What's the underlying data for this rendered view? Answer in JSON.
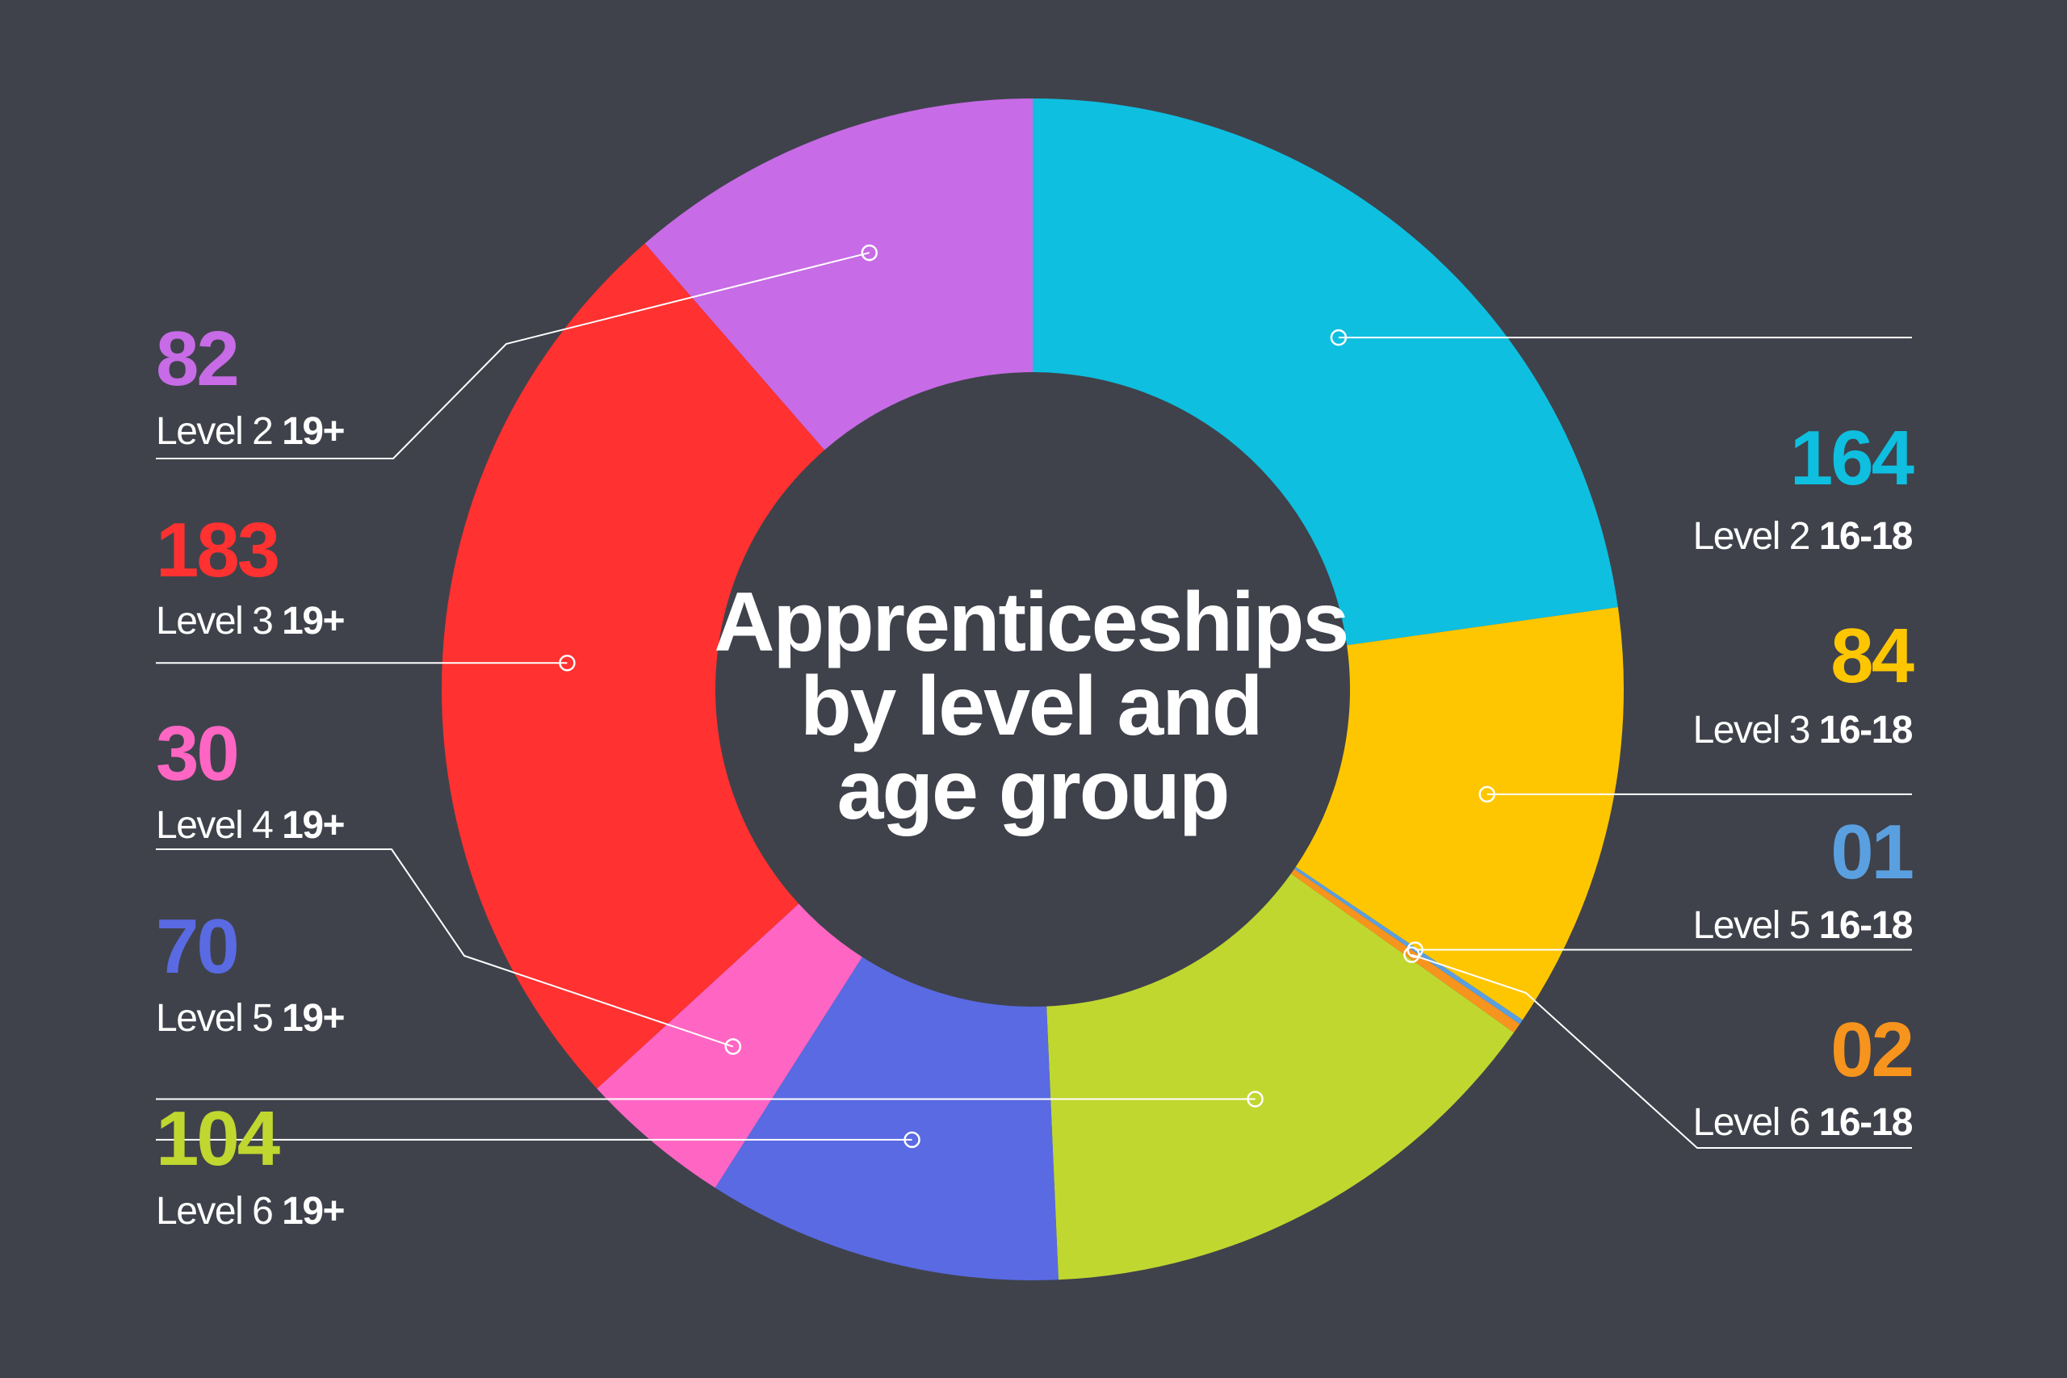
{
  "background": "#3f424b",
  "chart_data": {
    "type": "pie",
    "subtype": "donut",
    "title": [
      "Apprenticeships",
      "by level and",
      "age group"
    ],
    "slices": [
      {
        "display": "164",
        "value": 164,
        "level": "Level 2",
        "group": "16-18",
        "color": "#0ebfe0"
      },
      {
        "display": "84",
        "value": 84,
        "level": "Level 3",
        "group": "16-18",
        "color": "#fec601"
      },
      {
        "display": "01",
        "value": 1,
        "level": "Level 5",
        "group": "16-18",
        "color": "#5aa0e0"
      },
      {
        "display": "02",
        "value": 2,
        "level": "Level 6",
        "group": "16-18",
        "color": "#f7941d"
      },
      {
        "display": "104",
        "value": 104,
        "level": "Level 6",
        "group": "19+",
        "color": "#c0d730"
      },
      {
        "display": "70",
        "value": 70,
        "level": "Level 5",
        "group": "19+",
        "color": "#596ae3"
      },
      {
        "display": "30",
        "value": 30,
        "level": "Level 4",
        "group": "19+",
        "color": "#ff66c4"
      },
      {
        "display": "183",
        "value": 183,
        "level": "Level 3",
        "group": "19+",
        "color": "#ff3131"
      },
      {
        "display": "82",
        "value": 82,
        "level": "Level 2",
        "group": "19+",
        "color": "#c76be6"
      }
    ]
  }
}
